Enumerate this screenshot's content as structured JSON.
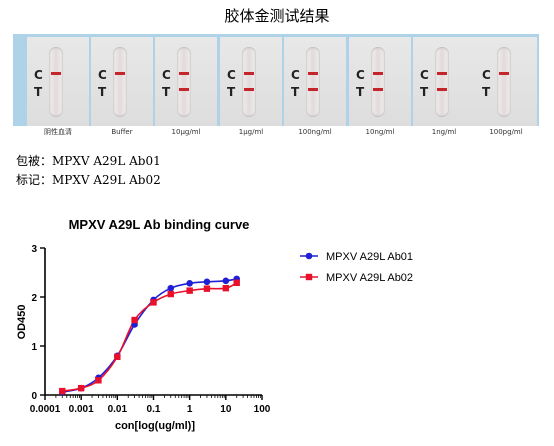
{
  "page_title": "胶体金测试结果",
  "strips": [
    {
      "caption": "阴性血清",
      "c": "C",
      "t": "T",
      "c_line": true,
      "t_line": false
    },
    {
      "caption": "Buffer",
      "c": "C",
      "t": "T",
      "c_line": true,
      "t_line": false
    },
    {
      "caption": "10μg/ml",
      "c": "C",
      "t": "T",
      "c_line": true,
      "t_line": true
    },
    {
      "caption": "1μg/ml",
      "c": "C",
      "t": "T",
      "c_line": true,
      "t_line": true
    },
    {
      "caption": "100ng/ml",
      "c": "C",
      "t": "T",
      "c_line": true,
      "t_line": true
    },
    {
      "caption": "10ng/ml",
      "c": "C",
      "t": "T",
      "c_line": true,
      "t_line": true
    },
    {
      "caption": "1ng/ml",
      "c": "C",
      "t": "T",
      "c_line": true,
      "t_line": true
    },
    {
      "caption": "100pg/ml",
      "c": "C",
      "t": "T",
      "c_line": true,
      "t_line": false
    }
  ],
  "meta": {
    "coating": "包被：MPXV A29L Ab01",
    "label": "标记：MPXV A29L Ab02"
  },
  "chart_data": {
    "type": "scatter",
    "title": "MPXV A29L Ab binding curve",
    "xlabel": "con[log(ug/ml)]",
    "ylabel": "OD450",
    "x_scale": "log",
    "xlim": [
      0.0001,
      100
    ],
    "ylim": [
      0,
      3
    ],
    "x_ticks": [
      "0.0001",
      "0.001",
      "0.01",
      "0.1",
      "1",
      "10",
      "100"
    ],
    "y_ticks": [
      "0",
      "1",
      "2",
      "3"
    ],
    "legend_position": "top-right",
    "grid": false,
    "series": [
      {
        "name": "MPXV A29L Ab01",
        "color": "#1f1fd6",
        "marker": "circle",
        "x": [
          0.0003,
          0.001,
          0.003,
          0.01,
          0.03,
          0.1,
          0.3,
          1,
          3,
          10,
          20
        ],
        "y": [
          0.06,
          0.14,
          0.35,
          0.8,
          1.44,
          1.94,
          2.18,
          2.28,
          2.31,
          2.33,
          2.37
        ]
      },
      {
        "name": "MPXV A29L Ab02",
        "color": "#e8102a",
        "marker": "square",
        "x": [
          0.0003,
          0.001,
          0.003,
          0.01,
          0.03,
          0.1,
          0.3,
          1,
          3,
          10,
          20
        ],
        "y": [
          0.08,
          0.14,
          0.3,
          0.78,
          1.53,
          1.89,
          2.06,
          2.13,
          2.17,
          2.18,
          2.29
        ]
      }
    ]
  }
}
